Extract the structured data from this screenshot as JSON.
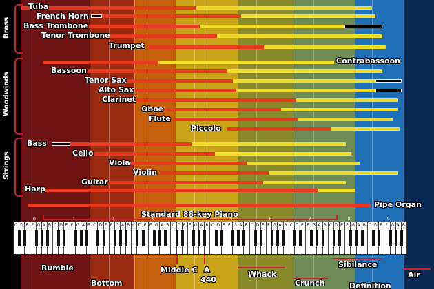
{
  "groups": {
    "brass": "Brass",
    "woodwinds": "Woodwinds",
    "strings": "Strings"
  },
  "instruments": [
    {
      "name": "Tuba",
      "fundamental": [
        30,
        285
      ],
      "harmonics": [
        285,
        540
      ]
    },
    {
      "name": "French Horn",
      "fundamental": [
        145,
        350
      ],
      "harmonics": [
        350,
        545
      ],
      "overlay": [
        132,
        148
      ]
    },
    {
      "name": "Bass Trombone",
      "fundamental": [
        70,
        290
      ],
      "harmonics": [
        290,
        500
      ],
      "overlay": [
        500,
        555
      ]
    },
    {
      "name": "Tenor Trombone",
      "fundamental": [
        145,
        315
      ],
      "harmonics": [
        315,
        555
      ]
    },
    {
      "name": "Trumpet",
      "fundamental": [
        215,
        383
      ],
      "harmonics": [
        383,
        560
      ]
    },
    {
      "name": "Contrabassoon",
      "fundamental": [
        62,
        230
      ],
      "harmonics": [
        230,
        485
      ]
    },
    {
      "name": "Bassoon",
      "fundamental": [
        128,
        330
      ],
      "harmonics": [
        330,
        555
      ]
    },
    {
      "name": "Tenor Sax",
      "fundamental": [
        180,
        338
      ],
      "harmonics": [
        338,
        545
      ],
      "overlay": [
        545,
        583
      ]
    },
    {
      "name": "Alto Sax",
      "fundamental": [
        198,
        343
      ],
      "harmonics": [
        343,
        545
      ],
      "overlay": [
        545,
        583
      ]
    },
    {
      "name": "Clarinet",
      "fundamental": [
        170,
        430
      ],
      "harmonics": [
        430,
        578
      ]
    },
    {
      "name": "Oboe",
      "fundamental": [
        242,
        408
      ],
      "harmonics": [
        408,
        578
      ]
    },
    {
      "name": "Flute",
      "fundamental": [
        252,
        432
      ],
      "harmonics": [
        432,
        570
      ]
    },
    {
      "name": "Piccolo",
      "fundamental": [
        330,
        480
      ],
      "harmonics": [
        480,
        580
      ]
    },
    {
      "name": "Bass",
      "fundamental": [
        102,
        278
      ],
      "harmonics": [
        278,
        502
      ],
      "overlay": [
        75,
        102
      ]
    },
    {
      "name": "Cello",
      "fundamental": [
        132,
        312
      ],
      "harmonics": [
        312,
        510
      ]
    },
    {
      "name": "Viola",
      "fundamental": [
        188,
        358
      ],
      "harmonics": [
        358,
        522
      ]
    },
    {
      "name": "Violin",
      "fundamental": [
        232,
        390
      ],
      "harmonics": [
        390,
        578
      ]
    },
    {
      "name": "Guitar",
      "fundamental": [
        158,
        382
      ],
      "harmonics": [
        382,
        502
      ]
    },
    {
      "name": "Harp",
      "fundamental": [
        40,
        462
      ],
      "harmonics": [
        462,
        516
      ]
    },
    {
      "name": "Pipe Organ",
      "fundamental": [
        40,
        538
      ]
    }
  ],
  "piano": {
    "label": "Standard 88-key Piano",
    "note_letters": [
      "C",
      "D",
      "E",
      "F",
      "G",
      "A",
      "B"
    ],
    "octaves": [
      "0",
      "1",
      "2",
      "3",
      "4",
      "5",
      "6",
      "7",
      "8",
      "9"
    ]
  },
  "zones": {
    "rumble": "Rumble",
    "bottom": "Bottom",
    "middle_c": "Middle C",
    "a440": "A",
    "a440_num": "440",
    "whack": "Whack",
    "crunch": "Crunch",
    "sibilance": "Sibilance",
    "definition": "Definition",
    "air": "Air"
  },
  "colors": {
    "fundamental": "#e83a1e",
    "harmonics": "#f2dc2a",
    "overlay": "#000000",
    "brace": "#c8202a"
  }
}
